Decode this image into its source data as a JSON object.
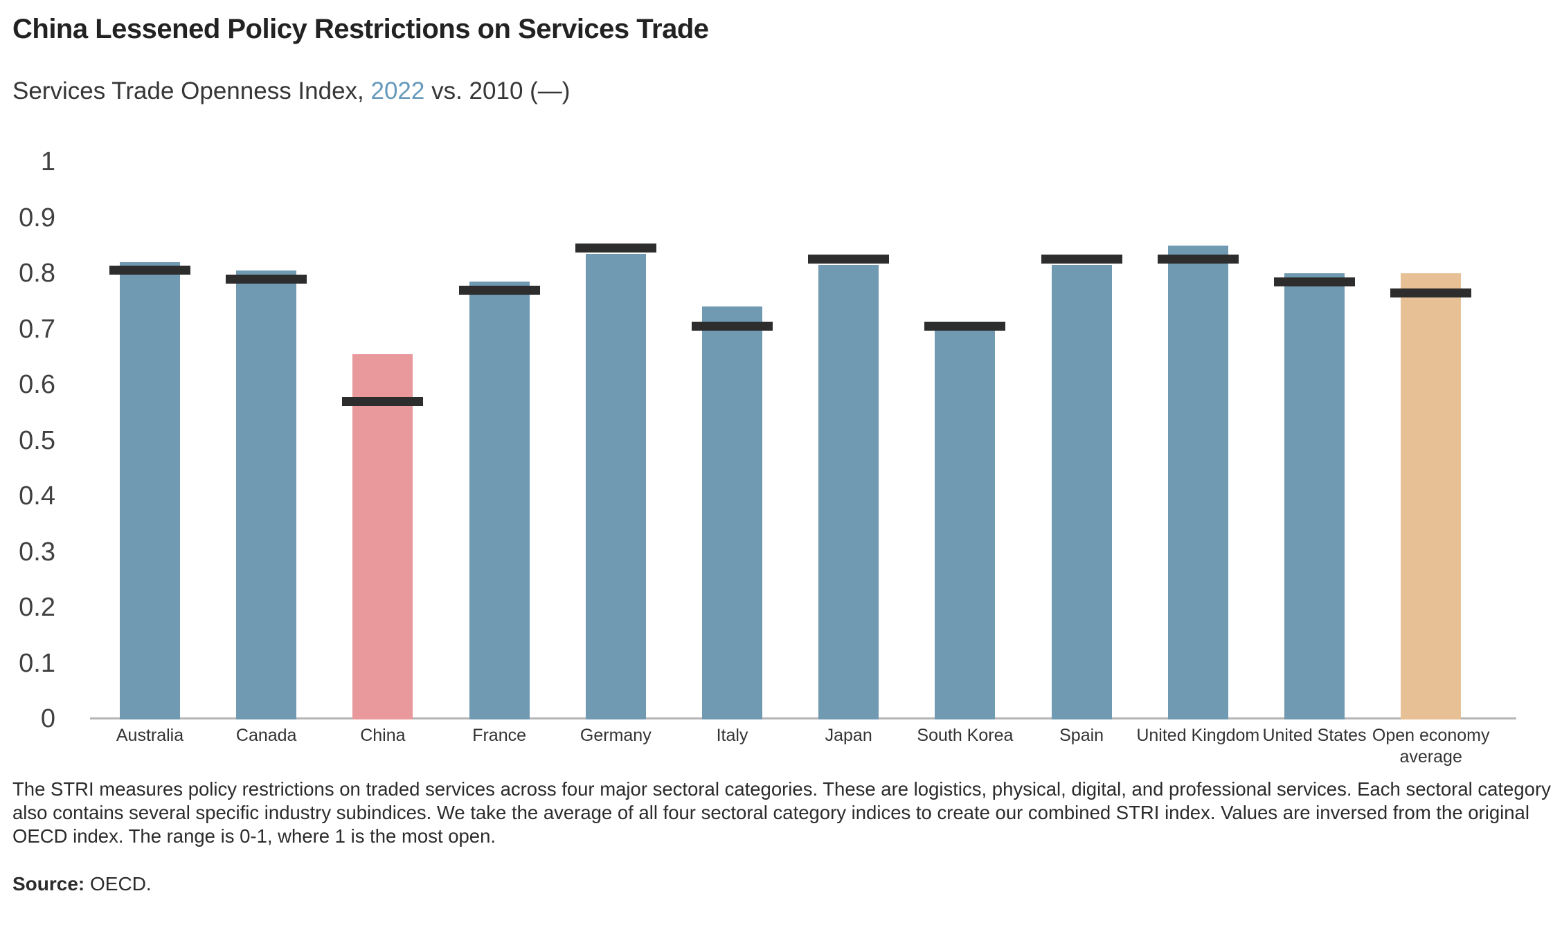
{
  "header": {
    "title": "China Lessened Policy Restrictions on Services Trade",
    "subtitle_prefix": "Services Trade Openness Index, ",
    "subtitle_year": "2022",
    "subtitle_suffix": " vs. 2010 (—)"
  },
  "notes": {
    "body": "The STRI measures policy restrictions on traded services across four major sectoral categories. These are logistics, physical, digital, and professional services. Each sectoral category also contains several specific industry subindices. We take the average of all four sectoral category indices to create our combined STRI index. Values are inversed from the original OECD index. The range is 0-1, where 1 is the most open.",
    "source_label": "Source:",
    "source_value": "OECD."
  },
  "colors": {
    "bar_default": "#7099b2",
    "bar_china": "#e9999b",
    "bar_open_economy": "#e7c095",
    "dash_2010": "#2d2d2d",
    "subtitle_year_blue": "#6699bb",
    "axis_line": "#b5b5b5"
  },
  "chart_data": {
    "type": "bar",
    "title": "China Lessened Policy Restrictions on Services Trade",
    "subtitle": "Services Trade Openness Index, 2022 vs. 2010 (—)",
    "categories": [
      "Australia",
      "Canada",
      "China",
      "France",
      "Germany",
      "Italy",
      "Japan",
      "South Korea",
      "Spain",
      "United Kingdom",
      "United States",
      "Open economy average"
    ],
    "series": [
      {
        "name": "2022",
        "mark": "bar",
        "values": [
          0.82,
          0.805,
          0.655,
          0.785,
          0.835,
          0.74,
          0.815,
          0.7,
          0.815,
          0.85,
          0.8,
          0.8
        ]
      },
      {
        "name": "2010",
        "mark": "horizontal-dash",
        "values": [
          0.805,
          0.79,
          0.57,
          0.77,
          0.845,
          0.705,
          0.825,
          0.705,
          0.825,
          0.825,
          0.785,
          0.765
        ]
      }
    ],
    "highlighted_bars": {
      "China": "#e9999b",
      "Open economy average": "#e7c095"
    },
    "ylim": [
      0,
      1
    ],
    "y_ticks": [
      "1",
      "0.9",
      "0.8",
      "0.7",
      "0.6",
      "0.5",
      "0.4",
      "0.3",
      "0.2",
      "0.1",
      "0"
    ],
    "y_tick_values": [
      1,
      0.9,
      0.8,
      0.7,
      0.6,
      0.5,
      0.4,
      0.3,
      0.2,
      0.1,
      0
    ],
    "grid": false,
    "legend_position": "encoded-in-subtitle"
  }
}
